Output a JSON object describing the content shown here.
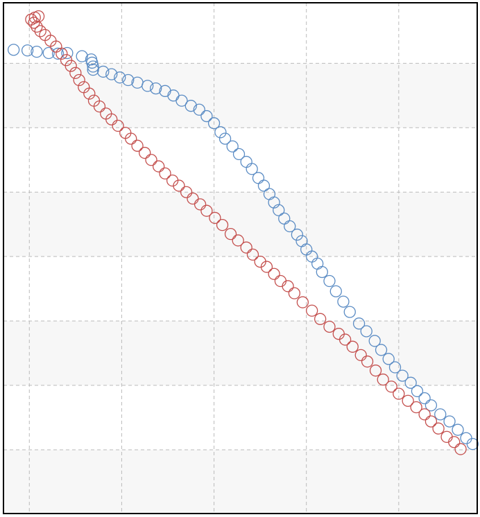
{
  "chart_data": {
    "type": "scatter",
    "grid": true,
    "xlim": [
      -0.28,
      4.85
    ],
    "xticks": [
      0,
      1,
      2,
      3,
      4
    ],
    "ylim": [
      -0.99,
      6.94
    ],
    "yticks": [
      0,
      1,
      2,
      3,
      4,
      5,
      6
    ],
    "series": [
      {
        "color": "#5b8cc4",
        "x": [
          -0.17,
          -0.02,
          0.08,
          0.21,
          0.31,
          0.41,
          0.57,
          0.67,
          0.68,
          0.69,
          0.69,
          0.8,
          0.89,
          0.98,
          1.07,
          1.17,
          1.28,
          1.37,
          1.47,
          1.56,
          1.65,
          1.75,
          1.84,
          1.92,
          2.0,
          2.07,
          2.12,
          2.2,
          2.27,
          2.35,
          2.41,
          2.48,
          2.54,
          2.6,
          2.65,
          2.7,
          2.76,
          2.82,
          2.9,
          2.95,
          3.0,
          3.06,
          3.12,
          3.17,
          3.25,
          3.32,
          3.4,
          3.47,
          3.57,
          3.65,
          3.74,
          3.81,
          3.89,
          3.96,
          4.04,
          4.13,
          4.2,
          4.28,
          4.35,
          4.45,
          4.55,
          4.64,
          4.73,
          4.8
        ],
        "values": [
          6.21,
          6.2,
          6.18,
          6.16,
          6.15,
          6.16,
          6.11,
          6.06,
          6.01,
          5.95,
          5.9,
          5.87,
          5.83,
          5.78,
          5.74,
          5.7,
          5.65,
          5.61,
          5.57,
          5.5,
          5.42,
          5.34,
          5.28,
          5.18,
          5.07,
          4.93,
          4.83,
          4.71,
          4.59,
          4.47,
          4.36,
          4.22,
          4.1,
          3.97,
          3.84,
          3.72,
          3.59,
          3.47,
          3.34,
          3.24,
          3.11,
          3.0,
          2.89,
          2.76,
          2.62,
          2.46,
          2.3,
          2.14,
          1.96,
          1.84,
          1.69,
          1.55,
          1.41,
          1.28,
          1.15,
          1.04,
          0.91,
          0.8,
          0.69,
          0.55,
          0.44,
          0.31,
          0.18,
          0.09
        ]
      },
      {
        "color": "#c4504e",
        "x": [
          0.02,
          0.06,
          0.1,
          0.05,
          0.08,
          0.12,
          0.17,
          0.23,
          0.29,
          0.35,
          0.4,
          0.45,
          0.5,
          0.54,
          0.59,
          0.65,
          0.7,
          0.76,
          0.83,
          0.89,
          0.96,
          1.04,
          1.1,
          1.17,
          1.25,
          1.32,
          1.4,
          1.47,
          1.55,
          1.62,
          1.7,
          1.77,
          1.85,
          1.92,
          2.01,
          2.09,
          2.18,
          2.26,
          2.35,
          2.42,
          2.5,
          2.57,
          2.65,
          2.72,
          2.8,
          2.87,
          2.96,
          3.06,
          3.15,
          3.25,
          3.35,
          3.42,
          3.5,
          3.59,
          3.66,
          3.75,
          3.83,
          3.92,
          4.0,
          4.1,
          4.19,
          4.28,
          4.35,
          4.43,
          4.52,
          4.6,
          4.67
        ],
        "values": [
          6.68,
          6.71,
          6.73,
          6.63,
          6.57,
          6.5,
          6.44,
          6.35,
          6.26,
          6.15,
          6.05,
          5.96,
          5.85,
          5.74,
          5.63,
          5.53,
          5.42,
          5.33,
          5.22,
          5.13,
          5.03,
          4.92,
          4.83,
          4.72,
          4.61,
          4.5,
          4.4,
          4.29,
          4.18,
          4.1,
          4.0,
          3.9,
          3.81,
          3.71,
          3.6,
          3.49,
          3.35,
          3.25,
          3.14,
          3.03,
          2.92,
          2.84,
          2.73,
          2.62,
          2.54,
          2.43,
          2.29,
          2.16,
          2.03,
          1.91,
          1.8,
          1.71,
          1.6,
          1.47,
          1.37,
          1.23,
          1.09,
          0.98,
          0.87,
          0.76,
          0.66,
          0.55,
          0.44,
          0.33,
          0.2,
          0.12,
          0.01
        ]
      }
    ]
  }
}
